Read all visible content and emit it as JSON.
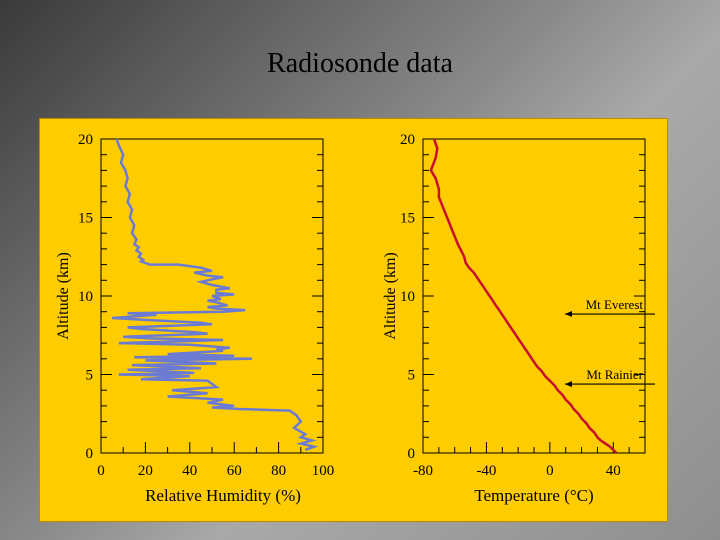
{
  "slide": {
    "title": "Radiosonde data"
  },
  "chart_data": [
    {
      "type": "line",
      "xlabel": "Relative Humidity (%)",
      "ylabel": "Altitude (km)",
      "xlim": [
        0,
        100
      ],
      "ylim": [
        0,
        20
      ],
      "x_ticks": [
        "0",
        "20",
        "40",
        "60",
        "80",
        "100"
      ],
      "y_ticks": [
        "0",
        "5",
        "10",
        "15",
        "20"
      ],
      "line_color": "#6b7bd4",
      "series": [
        {
          "x": [
            7,
            8,
            10,
            9,
            11,
            12,
            11,
            13,
            12,
            14,
            13,
            15,
            14,
            16,
            15,
            17,
            16,
            18,
            17,
            19,
            18,
            20,
            22,
            35,
            40,
            45,
            50,
            42,
            48,
            55,
            48,
            45,
            50,
            58,
            52,
            52,
            60,
            50,
            52,
            54,
            48,
            52,
            57,
            48,
            52,
            65,
            55,
            12,
            25,
            5,
            18,
            45,
            50,
            12,
            18,
            42,
            48,
            10,
            22,
            55,
            8,
            40,
            58,
            52,
            55,
            30,
            60,
            15,
            68,
            20,
            52,
            14,
            45,
            12,
            42,
            8,
            40,
            18,
            48,
            50,
            52,
            32,
            48,
            30,
            55,
            48,
            60,
            50,
            62,
            85,
            88,
            90,
            87,
            92,
            90,
            95,
            90,
            96,
            92
          ],
          "y": [
            20,
            19.6,
            19,
            18.5,
            18,
            17.5,
            17,
            16.5,
            16,
            15.5,
            15,
            14.5,
            14,
            13.6,
            13.3,
            13.1,
            12.9,
            12.7,
            12.5,
            12.3,
            12.2,
            12.1,
            12.0,
            12.0,
            11.9,
            11.8,
            11.6,
            11.5,
            11.3,
            11.2,
            11.0,
            10.9,
            10.7,
            10.5,
            10.4,
            10.2,
            10.1,
            10.0,
            9.9,
            9.8,
            9.7,
            9.6,
            9.4,
            9.3,
            9.2,
            9.1,
            9.0,
            8.9,
            8.8,
            8.6,
            8.5,
            8.3,
            8.2,
            8.0,
            7.9,
            7.7,
            7.6,
            7.4,
            7.3,
            7.2,
            7.0,
            6.9,
            6.7,
            6.6,
            6.5,
            6.3,
            6.2,
            6.1,
            6.0,
            5.9,
            5.7,
            5.6,
            5.4,
            5.3,
            5.1,
            5.0,
            4.9,
            4.7,
            4.6,
            4.4,
            4.2,
            4.0,
            3.8,
            3.6,
            3.4,
            3.2,
            3.0,
            2.9,
            2.8,
            2.7,
            2.4,
            2.0,
            1.6,
            1.2,
            1.0,
            0.8,
            0.6,
            0.4,
            0.2
          ]
        }
      ]
    },
    {
      "type": "line",
      "xlabel": "Temperature (°C)",
      "ylabel": "Altitude (km)",
      "xlim": [
        -80,
        60
      ],
      "ylim": [
        0,
        20
      ],
      "x_ticks": [
        {
          "value": -80,
          "label": "-80"
        },
        {
          "value": -40,
          "label": "-40"
        },
        {
          "value": 0,
          "label": "0"
        },
        {
          "value": 40,
          "label": "40"
        }
      ],
      "y_ticks": [
        "0",
        "5",
        "10",
        "15",
        "20"
      ],
      "line_color": "#c8102e",
      "series": [
        {
          "x": [
            -73,
            -71,
            -72,
            -75,
            -72,
            -70,
            -70,
            -68,
            -66,
            -64,
            -62,
            -60,
            -58,
            -56,
            -54,
            -53,
            -51,
            -48,
            -46,
            -44,
            -42,
            -40,
            -38,
            -36,
            -34,
            -32,
            -30,
            -28,
            -26,
            -24,
            -22,
            -20,
            -18,
            -16,
            -14,
            -12,
            -10,
            -8,
            -5,
            -3,
            0,
            3,
            5,
            8,
            10,
            13,
            15,
            18,
            20,
            23,
            25,
            28,
            30,
            32,
            35,
            38,
            40,
            42
          ],
          "y": [
            20,
            19.4,
            18.8,
            18.0,
            17.5,
            16.8,
            16.3,
            15.8,
            15.3,
            14.8,
            14.3,
            13.8,
            13.3,
            12.9,
            12.5,
            12.1,
            11.8,
            11.5,
            11.2,
            10.9,
            10.6,
            10.3,
            10.0,
            9.7,
            9.4,
            9.1,
            8.8,
            8.5,
            8.2,
            7.9,
            7.6,
            7.3,
            7.0,
            6.7,
            6.4,
            6.1,
            5.8,
            5.5,
            5.2,
            4.9,
            4.6,
            4.3,
            4.0,
            3.7,
            3.4,
            3.1,
            2.8,
            2.5,
            2.2,
            1.9,
            1.6,
            1.3,
            1.0,
            0.8,
            0.6,
            0.4,
            0.2,
            0.0
          ]
        }
      ],
      "annotations": [
        {
          "text": "Mt Everest",
          "y": 8.85
        },
        {
          "text": "Mt Rainier",
          "y": 4.39
        }
      ]
    }
  ]
}
